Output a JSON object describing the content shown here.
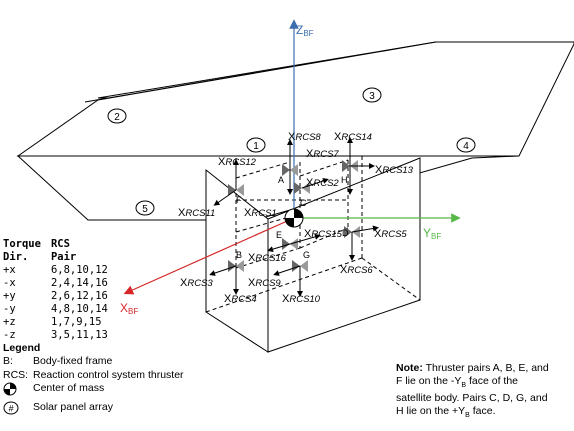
{
  "axes": {
    "z_label": "Z",
    "z_sub": "BF",
    "y_label": "Y",
    "y_sub": "BF",
    "x_label": "X",
    "x_sub": "BF"
  },
  "colors": {
    "z_axis": "#3b6fb0",
    "y_axis": "#57b847",
    "x_axis": "#d62828"
  },
  "panel_numbers": [
    "1",
    "2",
    "3",
    "4",
    "5"
  ],
  "thrusters": [
    {
      "id": "A",
      "label": "A"
    },
    {
      "id": "B",
      "label": "B"
    },
    {
      "id": "C",
      "label": "C"
    },
    {
      "id": "D",
      "label": "D"
    },
    {
      "id": "E",
      "label": "E"
    },
    {
      "id": "F",
      "label": "F"
    },
    {
      "id": "G",
      "label": "G"
    },
    {
      "id": "H",
      "label": "H"
    }
  ],
  "rcs_labels": {
    "rcs1": {
      "x": "X",
      "sub": "RCS1"
    },
    "rcs2": {
      "x": "X",
      "sub": "RCS2"
    },
    "rcs3": {
      "x": "X",
      "sub": "RCS3"
    },
    "rcs4": {
      "x": "X",
      "sub": "RCS4"
    },
    "rcs5": {
      "x": "X",
      "sub": "RCS5"
    },
    "rcs6": {
      "x": "X",
      "sub": "RCS6"
    },
    "rcs7": {
      "x": "X",
      "sub": "RCS7"
    },
    "rcs8": {
      "x": "X",
      "sub": "RCS8"
    },
    "rcs9": {
      "x": "X",
      "sub": "RCS9"
    },
    "rcs10": {
      "x": "X",
      "sub": "RCS10"
    },
    "rcs11": {
      "x": "X",
      "sub": "RCS11"
    },
    "rcs12": {
      "x": "X",
      "sub": "RCS12"
    },
    "rcs13": {
      "x": "X",
      "sub": "RCS13"
    },
    "rcs14": {
      "x": "X",
      "sub": "RCS14"
    },
    "rcs15": {
      "x": "X",
      "sub": "RCS15"
    },
    "rcs16": {
      "x": "X",
      "sub": "RCS16"
    }
  },
  "torque_table": {
    "headers": [
      [
        "Torque",
        "RCS"
      ],
      [
        "Dir.",
        "Pair"
      ]
    ],
    "rows": [
      [
        "+x",
        "6,8,10,12"
      ],
      [
        "-x",
        "2,4,14,16"
      ],
      [
        "+y",
        "2,6,12,16"
      ],
      [
        "-y",
        "4,8,10,14"
      ],
      [
        "+z",
        "1,7,9,15"
      ],
      [
        "-z",
        "3,5,11,13"
      ]
    ]
  },
  "legend": {
    "title": "Legend",
    "items": [
      {
        "key": "B:",
        "text": "Body-fixed frame",
        "icon": ""
      },
      {
        "key": "RCS:",
        "text": "Reaction control system thruster",
        "icon": ""
      },
      {
        "key": "",
        "text": "Center of mass",
        "icon": "center-of-mass-icon"
      },
      {
        "key": "",
        "text": "Solar panel array",
        "icon": "panel-number-icon"
      }
    ]
  },
  "note": {
    "bold": "Note:",
    "line1": " Thruster pairs A, B, E, and",
    "line2a": "F lie on the -Y",
    "line2sub": "B",
    "line2b": " face of the",
    "line3": "satellite body. Pairs C, D, G, and",
    "line4a": "H lie on the +Y",
    "line4sub": "B",
    "line4b": " face."
  }
}
